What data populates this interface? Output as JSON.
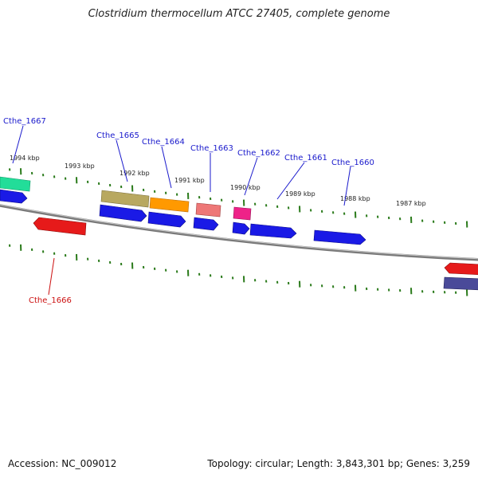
{
  "title": "Clostridium thermocellum ATCC 27405, complete genome",
  "footer": {
    "accession": "Accession: NC_009012",
    "stats": "Topology: circular; Length: 3,843,301 bp; Genes: 3,259"
  },
  "kbp_labels": [
    "1994 kbp",
    "1993 kbp",
    "1992 kbp",
    "1991 kbp",
    "1990 kbp",
    "1989 kbp",
    "1988 kbp",
    "1987 kbp"
  ],
  "gene_labels": [
    {
      "text": "Cthe_1667",
      "color": "#1a1acc"
    },
    {
      "text": "Cthe_1665",
      "color": "#1a1acc"
    },
    {
      "text": "Cthe_1664",
      "color": "#1a1acc"
    },
    {
      "text": "Cthe_1663",
      "color": "#1a1acc"
    },
    {
      "text": "Cthe_1662",
      "color": "#1a1acc"
    },
    {
      "text": "Cthe_1661",
      "color": "#1a1acc"
    },
    {
      "text": "Cthe_1660",
      "color": "#1a1acc"
    },
    {
      "text": "Cthe_1666",
      "color": "#cc1111"
    }
  ],
  "colors": {
    "backbone": "#808080",
    "tick": "#2a7a1a",
    "blue_gene": "#1a1ae6",
    "red_gene": "#e61a1a",
    "green_gene": "#22dd99",
    "olive_gene": "#b8a860",
    "orange_gene": "#ff9900",
    "salmon_gene": "#ee7777",
    "pink_gene": "#ee2288",
    "slate_gene": "#4a4a99"
  }
}
